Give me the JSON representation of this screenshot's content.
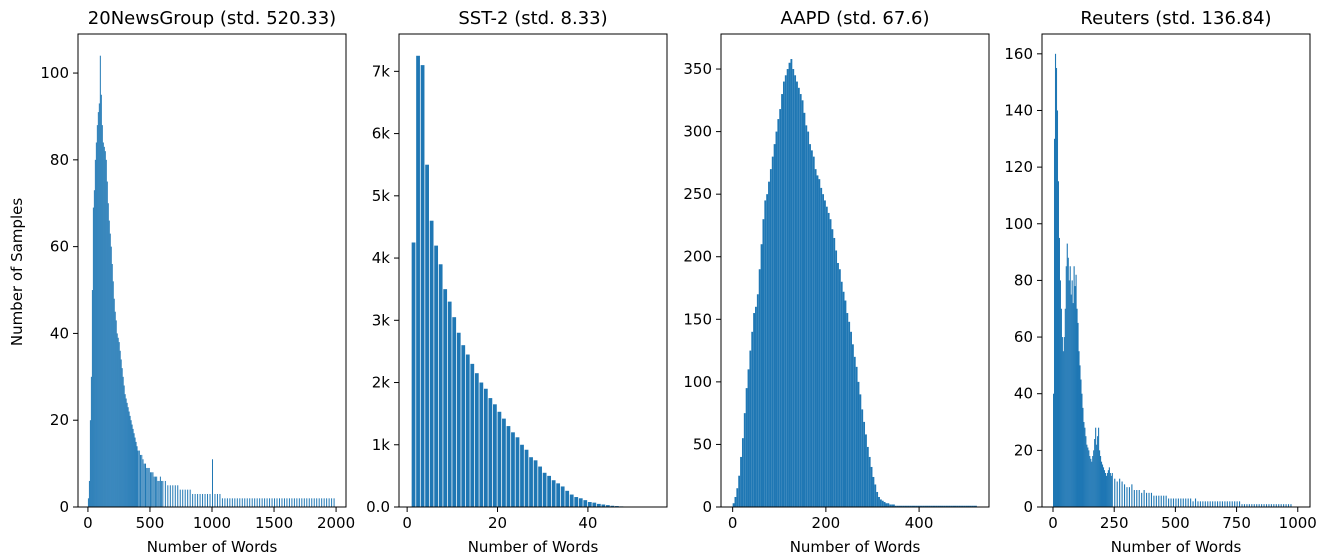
{
  "figure": {
    "ylabel": "Number of Samples",
    "bar_color": "#1f77b4"
  },
  "chart_data": [
    {
      "type": "bar",
      "title": "20NewsGroup (std. 520.33)",
      "xlabel": "Number of Words",
      "ylabel": "Number of Samples",
      "xlim": [
        -80,
        2080
      ],
      "ylim": [
        0,
        109
      ],
      "xticks": [
        0,
        500,
        1000,
        1500,
        2000
      ],
      "xtick_labels": [
        "0",
        "500",
        "1000",
        "1500",
        "2000"
      ],
      "yticks": [
        0,
        20,
        40,
        60,
        80,
        100
      ],
      "ytick_labels": [
        "0",
        "20",
        "40",
        "60",
        "80",
        "100"
      ],
      "bin_width": 8,
      "x": [
        0,
        8,
        16,
        24,
        32,
        40,
        48,
        56,
        64,
        72,
        80,
        88,
        96,
        104,
        112,
        120,
        128,
        136,
        144,
        152,
        160,
        168,
        176,
        184,
        192,
        200,
        208,
        216,
        224,
        232,
        240,
        248,
        256,
        264,
        272,
        280,
        288,
        296,
        304,
        312,
        320,
        328,
        336,
        344,
        352,
        360,
        368,
        376,
        384,
        392,
        400,
        410,
        420,
        430,
        440,
        450,
        460,
        470,
        480,
        490,
        500,
        510,
        520,
        530,
        540,
        550,
        560,
        570,
        580,
        590,
        600,
        620,
        640,
        660,
        680,
        700,
        720,
        740,
        760,
        780,
        800,
        820,
        840,
        860,
        880,
        900,
        920,
        940,
        960,
        980,
        1000,
        1020,
        1040,
        1060,
        1080,
        1100,
        1120,
        1140,
        1160,
        1180,
        1200,
        1220,
        1240,
        1260,
        1280,
        1300,
        1320,
        1340,
        1360,
        1380,
        1400,
        1420,
        1440,
        1460,
        1480,
        1500,
        1520,
        1540,
        1560,
        1580,
        1600,
        1620,
        1640,
        1660,
        1680,
        1700,
        1720,
        1740,
        1760,
        1780,
        1800,
        1820,
        1840,
        1860,
        1880,
        1900,
        1920,
        1940,
        1960,
        1980
      ],
      "values": [
        2,
        6,
        20,
        30,
        50,
        69,
        73,
        80,
        84,
        88,
        91,
        93,
        104,
        95,
        88,
        84,
        83,
        82,
        80,
        75,
        70,
        66,
        63,
        60,
        56,
        52,
        48,
        45,
        43,
        40,
        39,
        38,
        36,
        34,
        32,
        30,
        28,
        26,
        25,
        24,
        23,
        22,
        21,
        20,
        19,
        18,
        17,
        16,
        15,
        14,
        13,
        13,
        12,
        12,
        11,
        10,
        10,
        9,
        9,
        9,
        8,
        8,
        8,
        7,
        7,
        7,
        6,
        6,
        7,
        6,
        6,
        6,
        5,
        5,
        5,
        5,
        5,
        4,
        4,
        4,
        4,
        4,
        3,
        3,
        3,
        3,
        3,
        3,
        3,
        3,
        11,
        3,
        3,
        3,
        2,
        2,
        2,
        2,
        2,
        2,
        2,
        2,
        2,
        2,
        2,
        2,
        2,
        2,
        2,
        2,
        2,
        2,
        2,
        2,
        2,
        2,
        2,
        2,
        2,
        2,
        2,
        2,
        2,
        2,
        2,
        2,
        2,
        2,
        2,
        2,
        2,
        2,
        2,
        2,
        2,
        2,
        2,
        2,
        2,
        2
      ]
    },
    {
      "type": "bar",
      "title": "SST-2 (std. 8.33)",
      "xlabel": "Number of Words",
      "ylabel": "",
      "xlim": [
        -1.8,
        57.5
      ],
      "ylim": [
        0,
        7600
      ],
      "xticks": [
        0,
        20,
        40
      ],
      "xtick_labels": [
        "0",
        "20",
        "40"
      ],
      "yticks": [
        0,
        1000,
        2000,
        3000,
        4000,
        5000,
        6000,
        7000
      ],
      "ytick_labels": [
        "0.0",
        "1k",
        "2k",
        "3k",
        "4k",
        "5k",
        "6k",
        "7k"
      ],
      "bin_width": 1.1,
      "x": [
        1,
        2,
        3,
        4,
        5,
        6,
        7,
        8,
        9,
        10,
        11,
        12,
        13,
        14,
        15,
        16,
        17,
        18,
        19,
        20,
        21,
        22,
        23,
        24,
        25,
        26,
        27,
        28,
        29,
        30,
        31,
        32,
        33,
        34,
        35,
        36,
        37,
        38,
        39,
        40,
        41,
        42,
        43,
        44,
        45,
        46,
        47,
        48,
        49,
        50,
        51,
        52,
        53,
        54,
        55
      ],
      "values": [
        4250,
        7250,
        7100,
        5500,
        4600,
        4200,
        3900,
        3500,
        3300,
        3050,
        2800,
        2600,
        2450,
        2300,
        2150,
        2000,
        1900,
        1750,
        1650,
        1530,
        1420,
        1300,
        1200,
        1120,
        1000,
        920,
        800,
        750,
        650,
        550,
        500,
        430,
        380,
        330,
        260,
        200,
        160,
        140,
        110,
        80,
        70,
        50,
        40,
        30,
        20,
        15,
        10,
        8,
        6,
        4,
        3,
        2,
        2,
        1,
        1
      ]
    },
    {
      "type": "bar",
      "title": "AAPD (std. 67.6)",
      "xlabel": "Number of Words",
      "ylabel": "",
      "xlim": [
        -25,
        550
      ],
      "ylim": [
        0,
        378
      ],
      "xticks": [
        0,
        200,
        400
      ],
      "xtick_labels": [
        "0",
        "200",
        "400"
      ],
      "yticks": [
        0,
        50,
        100,
        150,
        200,
        250,
        300,
        350
      ],
      "ytick_labels": [
        "0",
        "50",
        "100",
        "150",
        "200",
        "250",
        "300",
        "350"
      ],
      "bin_width": 4,
      "x": [
        0,
        4,
        8,
        12,
        16,
        20,
        24,
        28,
        32,
        36,
        40,
        44,
        48,
        52,
        56,
        60,
        64,
        68,
        72,
        76,
        80,
        84,
        88,
        92,
        96,
        100,
        104,
        108,
        112,
        116,
        120,
        124,
        128,
        132,
        136,
        140,
        144,
        148,
        152,
        156,
        160,
        164,
        168,
        172,
        176,
        180,
        184,
        188,
        192,
        196,
        200,
        204,
        208,
        212,
        216,
        220,
        224,
        228,
        232,
        236,
        240,
        244,
        248,
        252,
        256,
        260,
        264,
        268,
        272,
        276,
        280,
        284,
        288,
        292,
        296,
        300,
        304,
        308,
        312,
        316,
        320,
        324,
        328,
        332,
        336,
        340,
        344,
        348,
        352,
        356,
        360,
        364,
        368,
        372,
        376,
        380,
        384,
        388,
        392,
        396,
        400,
        404,
        408,
        412,
        416,
        420,
        424,
        428,
        432,
        436,
        440,
        444,
        448,
        452,
        456,
        460,
        464,
        468,
        472,
        476,
        480,
        484,
        488,
        492,
        496,
        500,
        504,
        508,
        512,
        516,
        520
      ],
      "values": [
        3,
        8,
        15,
        25,
        40,
        55,
        75,
        95,
        110,
        125,
        140,
        155,
        160,
        170,
        190,
        210,
        230,
        245,
        250,
        260,
        270,
        280,
        290,
        300,
        310,
        318,
        330,
        340,
        345,
        350,
        355,
        358,
        350,
        345,
        340,
        335,
        330,
        325,
        315,
        305,
        300,
        290,
        285,
        280,
        270,
        265,
        262,
        255,
        250,
        245,
        240,
        235,
        230,
        222,
        215,
        205,
        195,
        190,
        180,
        172,
        165,
        155,
        148,
        140,
        130,
        120,
        112,
        100,
        90,
        78,
        68,
        58,
        48,
        40,
        32,
        24,
        18,
        12,
        8,
        6,
        5,
        4,
        3,
        3,
        2,
        2,
        2,
        1,
        1,
        1,
        1,
        1,
        1,
        1,
        1,
        1,
        1,
        1,
        1,
        1,
        1,
        1,
        1,
        1,
        1,
        1,
        1,
        1,
        1,
        1,
        1,
        1,
        1,
        1,
        1,
        1,
        1,
        1,
        1,
        1,
        1,
        1,
        1,
        1,
        1,
        1,
        1,
        1,
        1,
        1,
        1
      ]
    },
    {
      "type": "bar",
      "title": "Reuters (std. 136.84)",
      "xlabel": "Number of Words",
      "ylabel": "",
      "xlim": [
        -45,
        1050
      ],
      "ylim": [
        0,
        167
      ],
      "xticks": [
        0,
        250,
        500,
        750,
        1000
      ],
      "xtick_labels": [
        "0",
        "250",
        "500",
        "750",
        "1000"
      ],
      "yticks": [
        0,
        20,
        40,
        60,
        80,
        100,
        120,
        140,
        160
      ],
      "ytick_labels": [
        "0",
        "20",
        "40",
        "60",
        "80",
        "100",
        "120",
        "140",
        "160"
      ],
      "bin_width": 4.5,
      "x": [
        0,
        4,
        8,
        12,
        16,
        20,
        24,
        28,
        32,
        36,
        40,
        44,
        48,
        52,
        56,
        60,
        64,
        68,
        72,
        76,
        80,
        84,
        88,
        92,
        96,
        100,
        104,
        108,
        112,
        116,
        120,
        124,
        128,
        132,
        136,
        140,
        144,
        148,
        152,
        156,
        160,
        164,
        168,
        172,
        176,
        180,
        184,
        188,
        192,
        196,
        200,
        204,
        208,
        212,
        216,
        220,
        224,
        228,
        232,
        236,
        240,
        250,
        260,
        270,
        280,
        290,
        300,
        310,
        320,
        330,
        340,
        350,
        360,
        370,
        380,
        390,
        400,
        410,
        420,
        430,
        440,
        450,
        460,
        470,
        480,
        490,
        500,
        510,
        520,
        530,
        540,
        550,
        560,
        570,
        580,
        590,
        600,
        610,
        620,
        630,
        640,
        650,
        660,
        670,
        680,
        690,
        700,
        710,
        720,
        730,
        740,
        750,
        760,
        770,
        780,
        790,
        800,
        810,
        820,
        830,
        840,
        850,
        860,
        870,
        880,
        890,
        900,
        910,
        920,
        930,
        940,
        950,
        960,
        970
      ],
      "values": [
        40,
        130,
        160,
        155,
        140,
        115,
        95,
        80,
        70,
        60,
        55,
        60,
        70,
        85,
        93,
        88,
        80,
        85,
        75,
        80,
        72,
        85,
        78,
        82,
        70,
        65,
        55,
        50,
        45,
        40,
        35,
        30,
        28,
        25,
        22,
        21,
        20,
        18,
        17,
        16,
        18,
        20,
        24,
        28,
        22,
        25,
        28,
        20,
        18,
        16,
        15,
        14,
        13,
        12,
        11,
        12,
        13,
        14,
        12,
        11,
        12,
        10,
        9,
        10,
        9,
        8,
        7,
        7,
        8,
        6,
        6,
        6,
        5,
        6,
        5,
        5,
        5,
        4,
        4,
        4,
        4,
        4,
        4,
        3,
        3,
        3,
        3,
        3,
        3,
        3,
        3,
        3,
        3,
        2,
        3,
        2,
        2,
        2,
        2,
        2,
        2,
        2,
        2,
        2,
        2,
        2,
        2,
        2,
        2,
        2,
        2,
        2,
        2,
        1,
        1,
        1,
        1,
        1,
        1,
        1,
        1,
        1,
        1,
        1,
        1,
        1,
        1,
        1,
        1,
        1,
        1,
        1,
        1,
        1
      ]
    }
  ]
}
